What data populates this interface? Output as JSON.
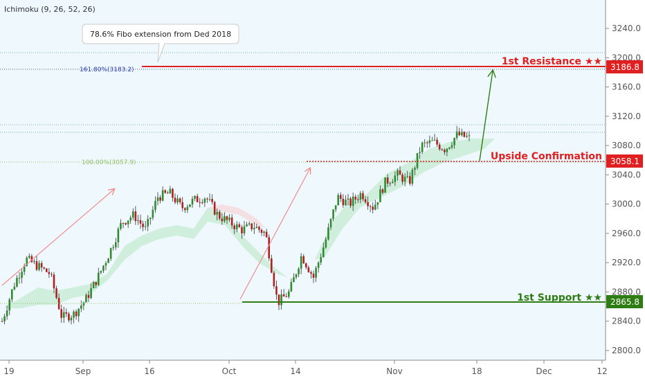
{
  "chart_data": {
    "type": "candlestick",
    "indicator": "Ichimoku (9, 26, 52, 26)",
    "x_ticks": [
      "19",
      "Sep",
      "16",
      "Oct",
      "14",
      "Nov",
      "18",
      "Dec",
      "12"
    ],
    "y_ticks": [
      "3240.0",
      "3200.0",
      "3160.0",
      "3120.0",
      "3080.0",
      "3040.0",
      "3000.0",
      "2960.0",
      "2920.0",
      "2880.0",
      "2840.0",
      "2800.0"
    ],
    "ylim": [
      2785,
      3282
    ],
    "price_path": [
      2840,
      2890,
      2925,
      2915,
      2905,
      2845,
      2850,
      2870,
      2900,
      2935,
      2975,
      2985,
      2965,
      3010,
      3015,
      2995,
      3005,
      3010,
      2985,
      2975,
      2965,
      2970,
      2960,
      2865,
      2880,
      2930,
      2900,
      2950,
      3010,
      3000,
      3015,
      2995,
      3030,
      3040,
      3030,
      3080,
      3085,
      3075,
      3095,
      3090
    ],
    "levels": [
      {
        "name": "1st Resistance ★★",
        "value": 3186.8,
        "badge": "3186.8",
        "color": "#e02020"
      },
      {
        "name": "Upside Confirmation",
        "value": 3058.1,
        "badge": "3058.1",
        "color": "#e02020"
      },
      {
        "name": "1st Support ★★",
        "value": 2865.8,
        "badge": "2865.8",
        "color": "#2e7d12"
      }
    ],
    "fib_labels": [
      {
        "text": "161.80%(3183.2)",
        "value": 3183.2,
        "color": "#2b3aa8"
      },
      {
        "text": "100.00%(3057.9)",
        "value": 3057.9,
        "color": "#8fbf60"
      }
    ],
    "callout": "78.6% Fibo extension from Ded 2018"
  }
}
